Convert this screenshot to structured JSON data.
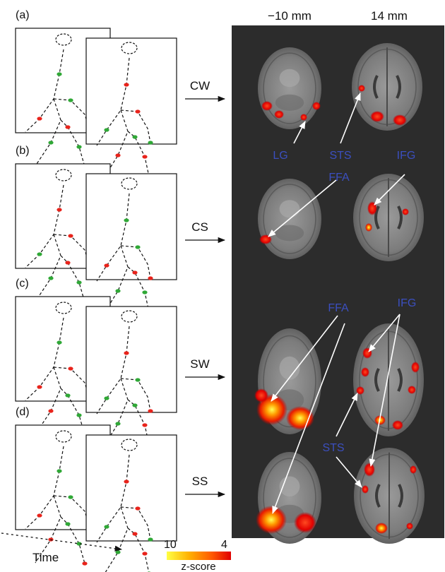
{
  "columns": {
    "left": "−10 mm",
    "right": "14 mm"
  },
  "panels": [
    {
      "label": "(a)",
      "condition": "CW"
    },
    {
      "label": "(b)",
      "condition": "CS"
    },
    {
      "label": "(c)",
      "condition": "SW"
    },
    {
      "label": "(d)",
      "condition": "SS"
    }
  ],
  "regions": {
    "lg": "LG",
    "sts": "STS",
    "ifg": "IFG",
    "ffa": "FFA"
  },
  "time_label": "Time",
  "colorbar": {
    "max_label": "10",
    "min_label": "4",
    "title": "z-score"
  },
  "colors": {
    "red_dot": "#e8231b",
    "green_dot": "#2fa836",
    "brain_bg": "#2c2c2c",
    "region_text": "#3b4fbf"
  }
}
